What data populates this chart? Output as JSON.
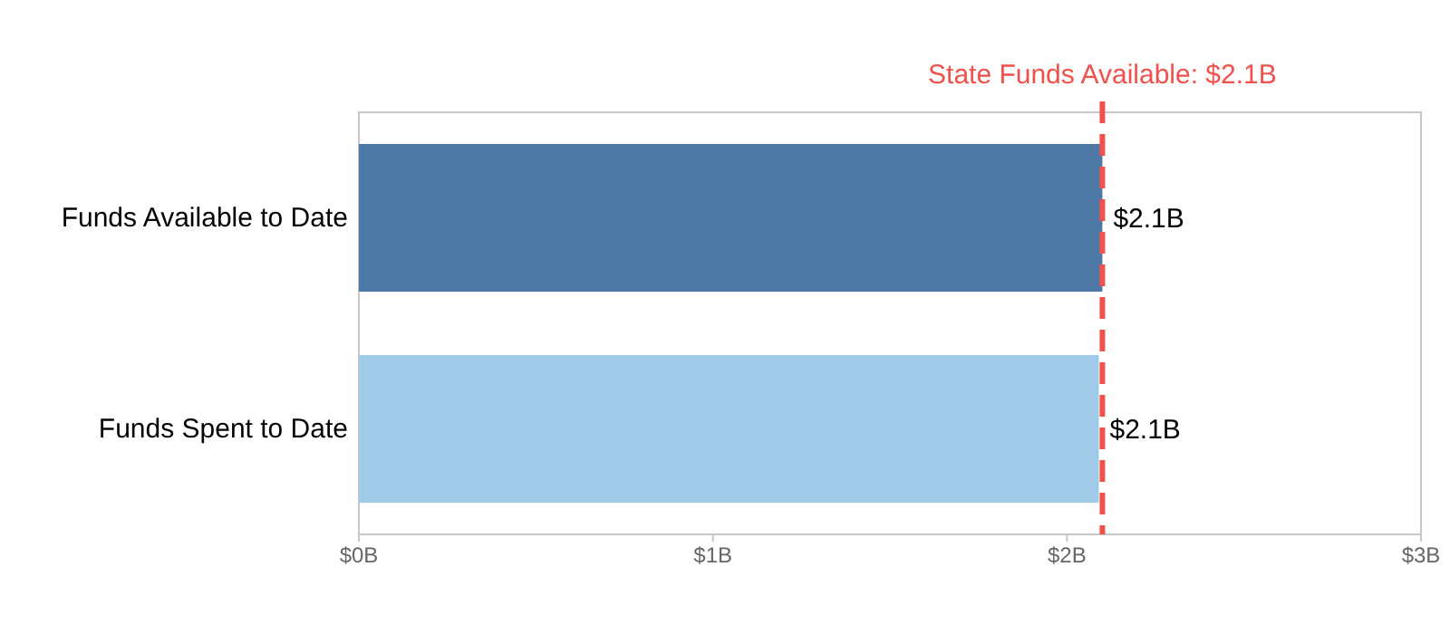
{
  "chart_data": {
    "type": "bar",
    "orientation": "horizontal",
    "categories": [
      "Funds Available to Date",
      "Funds Spent to Date"
    ],
    "values": [
      2.1,
      2.09
    ],
    "colors": [
      "#4e79a7",
      "#a0cbe8"
    ],
    "value_labels": [
      "$2.1B",
      "$2.1B"
    ],
    "xlim": [
      0,
      3
    ],
    "xticks": [
      {
        "value": 0,
        "label": "$0B"
      },
      {
        "value": 1,
        "label": "$1B"
      },
      {
        "value": 2,
        "label": "$2B"
      },
      {
        "value": 3,
        "label": "$3B"
      }
    ],
    "ref_lines": [
      {
        "axis": "x",
        "value": 2.1,
        "label": "State Funds Available: $2.1B",
        "color": "#f0524b",
        "line_style": "dashed"
      }
    ],
    "grid": false
  }
}
